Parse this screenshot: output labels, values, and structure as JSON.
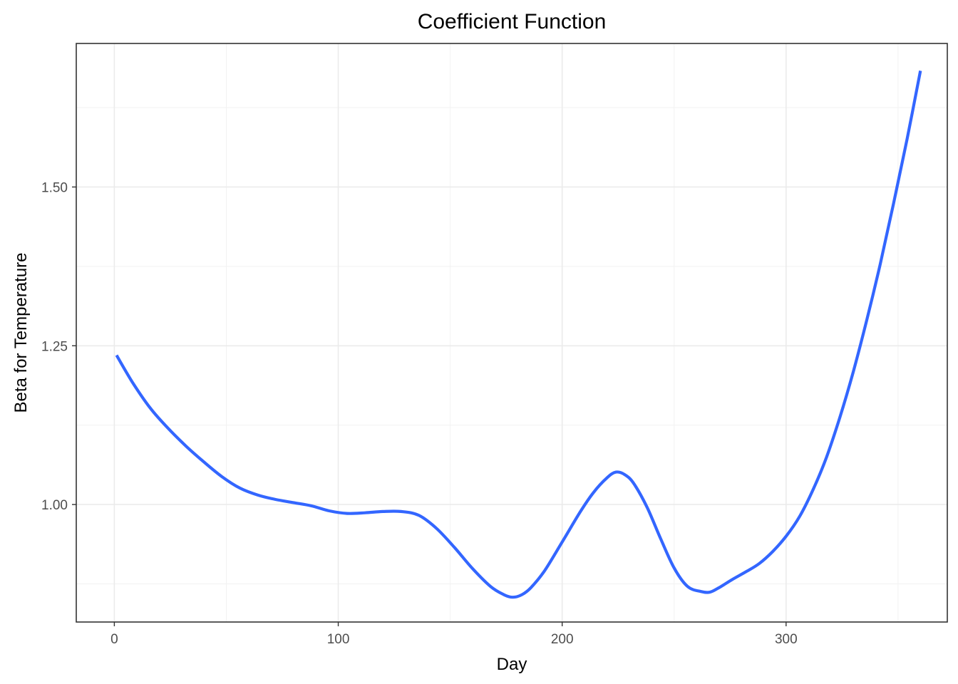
{
  "chart_data": {
    "type": "line",
    "title": "Coefficient Function",
    "xlabel": "Day",
    "ylabel": "Beta for Temperature",
    "xlim": [
      -17,
      372
    ],
    "ylim": [
      0.815,
      1.726
    ],
    "x_ticks": [
      0,
      100,
      200,
      300
    ],
    "x_tick_labels": [
      "0",
      "100",
      "200",
      "300"
    ],
    "y_ticks": [
      1.0,
      1.25,
      1.5
    ],
    "y_tick_labels": [
      "1.00",
      "1.25",
      "1.50"
    ],
    "x_minor": [
      50,
      150,
      250,
      350
    ],
    "y_minor": [
      0.875,
      1.125,
      1.375,
      1.625
    ],
    "grid": true,
    "theme": "bw",
    "colors": {
      "line": "#3366FF",
      "grid": "#ebebeb",
      "border": "#333333",
      "tick_text": "#4d4d4d"
    },
    "series": [
      {
        "x": [
          1,
          8,
          16,
          24,
          32,
          40,
          48,
          56,
          64,
          72,
          80,
          88,
          96,
          104,
          112,
          120,
          128,
          136,
          144,
          152,
          160,
          168,
          174,
          178,
          182,
          186,
          192,
          200,
          208,
          214,
          220,
          224,
          228,
          232,
          238,
          244,
          250,
          256,
          262,
          266,
          270,
          276,
          282,
          288,
          294,
          300,
          306,
          312,
          318,
          324,
          330,
          336,
          342,
          348,
          354,
          360
        ],
        "y": [
          1.235,
          1.193,
          1.152,
          1.12,
          1.092,
          1.067,
          1.044,
          1.026,
          1.015,
          1.008,
          1.003,
          0.998,
          0.99,
          0.986,
          0.987,
          0.989,
          0.989,
          0.983,
          0.962,
          0.932,
          0.899,
          0.871,
          0.858,
          0.854,
          0.858,
          0.869,
          0.895,
          0.941,
          0.988,
          1.019,
          1.042,
          1.051,
          1.047,
          1.033,
          0.995,
          0.946,
          0.9,
          0.871,
          0.863,
          0.862,
          0.869,
          0.882,
          0.894,
          0.907,
          0.926,
          0.95,
          0.981,
          1.023,
          1.074,
          1.137,
          1.209,
          1.29,
          1.378,
          1.474,
          1.575,
          1.683
        ]
      }
    ]
  }
}
